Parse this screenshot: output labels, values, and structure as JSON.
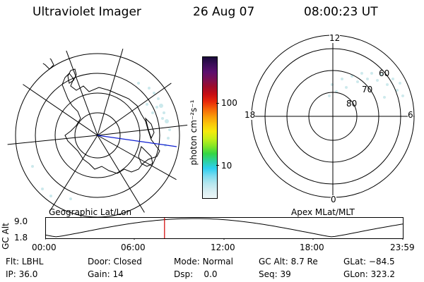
{
  "header": {
    "instrument": "Ultraviolet Imager",
    "date": "26 Aug 07",
    "time": "08:00:23 UT"
  },
  "geo_map": {
    "label": "Geographic Lat/Lon"
  },
  "colorbar": {
    "label": "photon cm⁻²s⁻¹",
    "ticks": [
      "100",
      "10"
    ],
    "scale": "log",
    "colors": [
      "#1a0a3a",
      "#3b0d58",
      "#5c0f6e",
      "#7a0f53",
      "#9e0b2a",
      "#c60d14",
      "#e8280a",
      "#f56408",
      "#f99a09",
      "#fbc60a",
      "#f5ea0d",
      "#c7ef18",
      "#84e627",
      "#34d644",
      "#2bd1a0",
      "#2ccff0",
      "#7ddcf0",
      "#b4e6ee",
      "#d7eef2",
      "#eef7f8"
    ]
  },
  "apex_map": {
    "label": "Apex MLat/MLT",
    "mlt_labels": {
      "top": "12",
      "bottom": "0",
      "left": "18",
      "right": "6"
    },
    "lat_labels": [
      "60",
      "70",
      "80"
    ]
  },
  "altitude_plot": {
    "ylabel": "GC Alt",
    "yticks": [
      "9.0",
      "1.8"
    ],
    "xticks": [
      "00:00",
      "06:00",
      "12:00",
      "18:00",
      "23:59"
    ],
    "curve_color": "#000000",
    "marker_color": "#d00000"
  },
  "status": {
    "row1": [
      {
        "label": "Flt:",
        "value": "LBHL"
      },
      {
        "label": "Door:",
        "value": "Closed"
      },
      {
        "label": "Mode:",
        "value": "Normal"
      },
      {
        "label": "GC Alt:",
        "value": "8.7 Re"
      },
      {
        "label": "GLat:",
        "value": "−84.5"
      }
    ],
    "row2": [
      {
        "label": "IP:",
        "value": "36.0"
      },
      {
        "label": "Gain:",
        "value": "14"
      },
      {
        "label": "Dsp:",
        "value": "   0.0"
      },
      {
        "label": "Seq:",
        "value": "39"
      },
      {
        "label": "GLon:",
        "value": "323.2"
      }
    ]
  }
}
